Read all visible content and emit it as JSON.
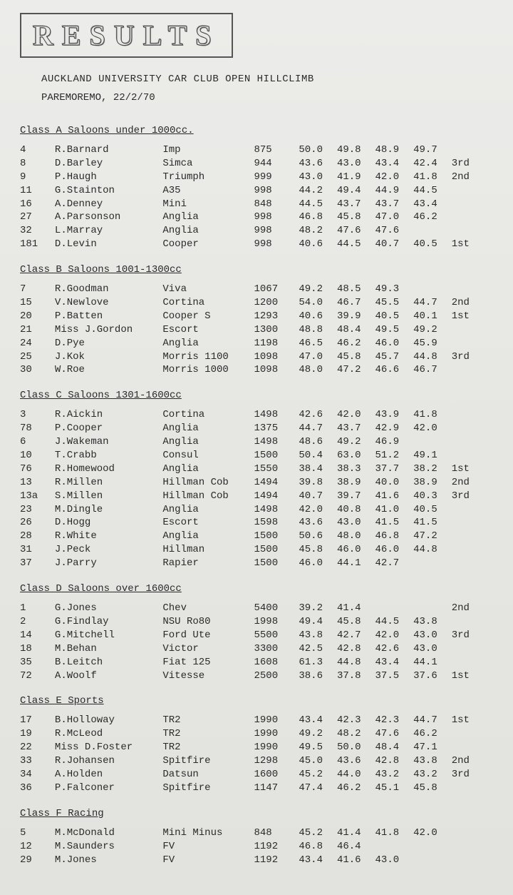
{
  "title": "RESULTS",
  "subtitle": "AUCKLAND UNIVERSITY CAR CLUB OPEN HILLCLIMB",
  "location": "PAREMOREMO,  22/2/70",
  "classes": [
    {
      "heading": "Class A Saloons under 1000cc.",
      "rows": [
        {
          "num": "4",
          "name": "R.Barnard",
          "car": "Imp",
          "cc": "875",
          "t": [
            "50.0",
            "49.8",
            "48.9",
            "49.7"
          ],
          "place": ""
        },
        {
          "num": "8",
          "name": "D.Barley",
          "car": "Simca",
          "cc": "944",
          "t": [
            "43.6",
            "43.0",
            "43.4",
            "42.4"
          ],
          "place": "3rd"
        },
        {
          "num": "9",
          "name": "P.Haugh",
          "car": "Triumph",
          "cc": "999",
          "t": [
            "43.0",
            "41.9",
            "42.0",
            "41.8"
          ],
          "place": "2nd"
        },
        {
          "num": "11",
          "name": "G.Stainton",
          "car": "A35",
          "cc": "998",
          "t": [
            "44.2",
            "49.4",
            "44.9",
            "44.5"
          ],
          "place": ""
        },
        {
          "num": "16",
          "name": "A.Denney",
          "car": "Mini",
          "cc": "848",
          "t": [
            "44.5",
            "43.7",
            "43.7",
            "43.4"
          ],
          "place": ""
        },
        {
          "num": "27",
          "name": "A.Parsonson",
          "car": "Anglia",
          "cc": "998",
          "t": [
            "46.8",
            "45.8",
            "47.0",
            "46.2"
          ],
          "place": ""
        },
        {
          "num": "32",
          "name": "L.Marray",
          "car": "Anglia",
          "cc": "998",
          "t": [
            "48.2",
            "47.6",
            "47.6",
            ""
          ],
          "place": ""
        },
        {
          "num": "181",
          "name": "D.Levin",
          "car": "Cooper",
          "cc": "998",
          "t": [
            "40.6",
            "44.5",
            "40.7",
            "40.5"
          ],
          "place": "1st"
        }
      ]
    },
    {
      "heading": "Class B Saloons 1001-1300cc",
      "rows": [
        {
          "num": "7",
          "name": "R.Goodman",
          "car": "Viva",
          "cc": "1067",
          "t": [
            "49.2",
            "48.5",
            "49.3",
            ""
          ],
          "place": ""
        },
        {
          "num": "15",
          "name": "V.Newlove",
          "car": "Cortina",
          "cc": "1200",
          "t": [
            "54.0",
            "46.7",
            "45.5",
            "44.7"
          ],
          "place": "2nd"
        },
        {
          "num": "20",
          "name": "P.Batten",
          "car": "Cooper S",
          "cc": "1293",
          "t": [
            "40.6",
            "39.9",
            "40.5",
            "40.1"
          ],
          "place": "1st"
        },
        {
          "num": "21",
          "name": "Miss J.Gordon",
          "car": "Escort",
          "cc": "1300",
          "t": [
            "48.8",
            "48.4",
            "49.5",
            "49.2"
          ],
          "place": ""
        },
        {
          "num": "24",
          "name": "D.Pye",
          "car": "Anglia",
          "cc": "1198",
          "t": [
            "46.5",
            "46.2",
            "46.0",
            "45.9"
          ],
          "place": ""
        },
        {
          "num": "25",
          "name": "J.Kok",
          "car": "Morris 1100",
          "cc": "1098",
          "t": [
            "47.0",
            "45.8",
            "45.7",
            "44.8"
          ],
          "place": "3rd"
        },
        {
          "num": "30",
          "name": "W.Roe",
          "car": "Morris 1000",
          "cc": "1098",
          "t": [
            "48.0",
            "47.2",
            "46.6",
            "46.7"
          ],
          "place": ""
        }
      ]
    },
    {
      "heading": "Class C Saloons 1301-1600cc",
      "rows": [
        {
          "num": "3",
          "name": "R.Aickin",
          "car": "Cortina",
          "cc": "1498",
          "t": [
            "42.6",
            "42.0",
            "43.9",
            "41.8"
          ],
          "place": ""
        },
        {
          "num": "78",
          "name": "P.Cooper",
          "car": "Anglia",
          "cc": "1375",
          "t": [
            "44.7",
            "43.7",
            "42.9",
            "42.0"
          ],
          "place": ""
        },
        {
          "num": "6",
          "name": "J.Wakeman",
          "car": "Anglia",
          "cc": "1498",
          "t": [
            "48.6",
            "49.2",
            "46.9",
            ""
          ],
          "place": ""
        },
        {
          "num": "10",
          "name": "T.Crabb",
          "car": "Consul",
          "cc": "1500",
          "t": [
            "50.4",
            "63.0",
            "51.2",
            "49.1"
          ],
          "place": ""
        },
        {
          "num": "76",
          "name": "R.Homewood",
          "car": "Anglia",
          "cc": "1550",
          "t": [
            "38.4",
            "38.3",
            "37.7",
            "38.2"
          ],
          "place": "1st"
        },
        {
          "num": "13",
          "name": "R.Millen",
          "car": "Hillman Cob",
          "cc": "1494",
          "t": [
            "39.8",
            "38.9",
            "40.0",
            "38.9"
          ],
          "place": "2nd"
        },
        {
          "num": "13a",
          "name": "S.Millen",
          "car": "Hillman Cob",
          "cc": "1494",
          "t": [
            "40.7",
            "39.7",
            "41.6",
            "40.3"
          ],
          "place": "3rd"
        },
        {
          "num": "23",
          "name": "M.Dingle",
          "car": "Anglia",
          "cc": "1498",
          "t": [
            "42.0",
            "40.8",
            "41.0",
            "40.5"
          ],
          "place": ""
        },
        {
          "num": "26",
          "name": "D.Hogg",
          "car": "Escort",
          "cc": "1598",
          "t": [
            "43.6",
            "43.0",
            "41.5",
            "41.5"
          ],
          "place": ""
        },
        {
          "num": "28",
          "name": "R.White",
          "car": "Anglia",
          "cc": "1500",
          "t": [
            "50.6",
            "48.0",
            "46.8",
            "47.2"
          ],
          "place": ""
        },
        {
          "num": "31",
          "name": "J.Peck",
          "car": "Hillman",
          "cc": "1500",
          "t": [
            "45.8",
            "46.0",
            "46.0",
            "44.8"
          ],
          "place": ""
        },
        {
          "num": "37",
          "name": "J.Parry",
          "car": "Rapier",
          "cc": "1500",
          "t": [
            "46.0",
            "44.1",
            "42.7",
            ""
          ],
          "place": ""
        }
      ]
    },
    {
      "heading": "Class D Saloons over 1600cc",
      "rows": [
        {
          "num": "1",
          "name": "G.Jones",
          "car": "Chev",
          "cc": "5400",
          "t": [
            "39.2",
            "41.4",
            "",
            ""
          ],
          "place": "2nd"
        },
        {
          "num": "2",
          "name": "G.Findlay",
          "car": "NSU Ro80",
          "cc": "1998",
          "t": [
            "49.4",
            "45.8",
            "44.5",
            "43.8"
          ],
          "place": ""
        },
        {
          "num": "14",
          "name": "G.Mitchell",
          "car": "Ford Ute",
          "cc": "5500",
          "t": [
            "43.8",
            "42.7",
            "42.0",
            "43.0"
          ],
          "place": "3rd"
        },
        {
          "num": "18",
          "name": "M.Behan",
          "car": "Victor",
          "cc": "3300",
          "t": [
            "42.5",
            "42.8",
            "42.6",
            "43.0"
          ],
          "place": ""
        },
        {
          "num": "35",
          "name": "B.Leitch",
          "car": "Fiat 125",
          "cc": "1608",
          "t": [
            "61.3",
            "44.8",
            "43.4",
            "44.1"
          ],
          "place": ""
        },
        {
          "num": "72",
          "name": "A.Woolf",
          "car": "Vitesse",
          "cc": "2500",
          "t": [
            "38.6",
            "37.8",
            "37.5",
            "37.6"
          ],
          "place": "1st"
        }
      ]
    },
    {
      "heading": "Class E Sports",
      "rows": [
        {
          "num": "17",
          "name": "B.Holloway",
          "car": "TR2",
          "cc": "1990",
          "t": [
            "43.4",
            "42.3",
            "42.3",
            "44.7"
          ],
          "place": "1st"
        },
        {
          "num": "19",
          "name": "R.McLeod",
          "car": "TR2",
          "cc": "1990",
          "t": [
            "49.2",
            "48.2",
            "47.6",
            "46.2"
          ],
          "place": ""
        },
        {
          "num": "22",
          "name": "Miss D.Foster",
          "car": "TR2",
          "cc": "1990",
          "t": [
            "49.5",
            "50.0",
            "48.4",
            "47.1"
          ],
          "place": ""
        },
        {
          "num": "33",
          "name": "R.Johansen",
          "car": "Spitfire",
          "cc": "1298",
          "t": [
            "45.0",
            "43.6",
            "42.8",
            "43.8"
          ],
          "place": "2nd"
        },
        {
          "num": "34",
          "name": "A.Holden",
          "car": "Datsun",
          "cc": "1600",
          "t": [
            "45.2",
            "44.0",
            "43.2",
            "43.2"
          ],
          "place": "3rd"
        },
        {
          "num": "36",
          "name": "P.Falconer",
          "car": "Spitfire",
          "cc": "1147",
          "t": [
            "47.4",
            "46.2",
            "45.1",
            "45.8"
          ],
          "place": ""
        }
      ]
    },
    {
      "heading": "Class F Racing",
      "rows": [
        {
          "num": "5",
          "name": "M.McDonald",
          "car": "Mini Minus",
          "cc": "848",
          "t": [
            "45.2",
            "41.4",
            "41.8",
            "42.0"
          ],
          "place": ""
        },
        {
          "num": "12",
          "name": "M.Saunders",
          "car": "FV",
          "cc": "1192",
          "t": [
            "46.8",
            "46.4",
            "",
            ""
          ],
          "place": ""
        },
        {
          "num": "29",
          "name": "M.Jones",
          "car": "FV",
          "cc": "1192",
          "t": [
            "43.4",
            "41.6",
            "43.0",
            ""
          ],
          "place": ""
        }
      ]
    }
  ]
}
